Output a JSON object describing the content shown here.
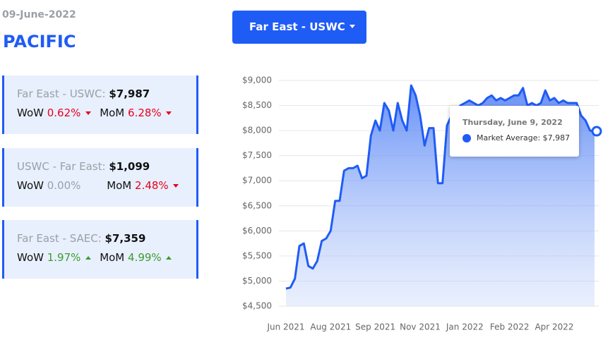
{
  "header": {
    "date": "09-June-2022",
    "title": "PACIFIC",
    "dropdown": "Far East - USWC"
  },
  "cards": [
    {
      "route": "Far East - USWC:",
      "price": "$7,987",
      "wow_label": "WoW",
      "wow": "0.62%",
      "wow_trend": "down",
      "mom_label": "MoM",
      "mom": "6.28%",
      "mom_trend": "down"
    },
    {
      "route": "USWC - Far East:",
      "price": "$1,099",
      "wow_label": "WoW",
      "wow": "0.00%",
      "wow_trend": "flat",
      "mom_label": "MoM",
      "mom": "2.48%",
      "mom_trend": "down"
    },
    {
      "route": "Far East - SAEC:",
      "price": "$7,359",
      "wow_label": "WoW",
      "wow": "1.97%",
      "wow_trend": "up",
      "mom_label": "MoM",
      "mom": "4.99%",
      "mom_trend": "up"
    }
  ],
  "chart_data": {
    "type": "area",
    "color": "#1f5cf5",
    "grid": true,
    "categories": [
      "Jun 2021",
      null,
      null,
      null,
      null,
      null,
      null,
      null,
      null,
      null,
      "Aug 2021",
      null,
      null,
      null,
      null,
      null,
      null,
      null,
      null,
      null,
      "Sep 2021",
      null,
      null,
      null,
      null,
      null,
      null,
      null,
      null,
      null,
      "Nov 2021",
      null,
      null,
      null,
      null,
      null,
      null,
      null,
      null,
      null,
      "Jan 2022",
      null,
      null,
      null,
      null,
      null,
      null,
      null,
      null,
      null,
      "Feb 2022",
      null,
      null,
      null,
      null,
      null,
      null,
      null,
      null,
      null,
      "Apr 2022",
      null,
      null,
      null,
      null,
      null,
      null,
      null,
      null,
      null
    ],
    "values": [
      4850,
      4870,
      5050,
      5700,
      5750,
      5300,
      5250,
      5400,
      5800,
      5850,
      6000,
      6600,
      6600,
      7200,
      7250,
      7250,
      7300,
      7050,
      7100,
      7900,
      8200,
      8000,
      8550,
      8400,
      8000,
      8550,
      8200,
      8000,
      8900,
      8700,
      8300,
      7700,
      8050,
      8050,
      6950,
      6950,
      8100,
      8300,
      8400,
      8500,
      8550,
      8600,
      8550,
      8500,
      8550,
      8650,
      8700,
      8600,
      8650,
      8600,
      8650,
      8700,
      8700,
      8850,
      8500,
      8550,
      8500,
      8550,
      8800,
      8600,
      8650,
      8550,
      8600,
      8550,
      8550,
      8550,
      8300,
      8200,
      8000,
      7987
    ],
    "ylim": [
      4500,
      9000
    ],
    "yticks": [
      {
        "value": 4500,
        "label": "$4,500"
      },
      {
        "value": 5000,
        "label": "$5,000"
      },
      {
        "value": 5500,
        "label": "$5,500"
      },
      {
        "value": 6000,
        "label": "$6,000"
      },
      {
        "value": 6500,
        "label": "$6,500"
      },
      {
        "value": 7000,
        "label": "$7,000"
      },
      {
        "value": 7500,
        "label": "$7,500"
      },
      {
        "value": 8000,
        "label": "$8,000"
      },
      {
        "value": 8500,
        "label": "$8,500"
      },
      {
        "value": 9000,
        "label": "$9,000"
      }
    ],
    "tooltip": {
      "title": "Thursday, June 9, 2022",
      "label": "Market Average: $7,987"
    }
  }
}
